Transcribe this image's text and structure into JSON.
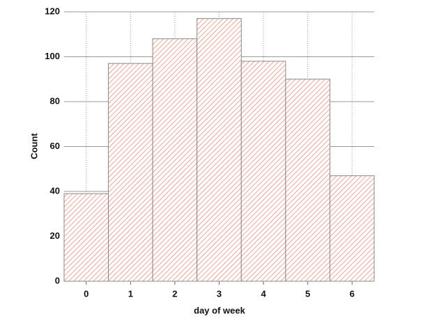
{
  "chart_data": {
    "type": "bar",
    "x_label": "day of week",
    "y_label": "Count",
    "x": [
      0,
      1,
      2,
      3,
      4,
      5,
      6
    ],
    "values": [
      39,
      97,
      108,
      117,
      98,
      90,
      47
    ],
    "color": "#e8806a",
    "edge_color": "#888888",
    "xlim": [
      -0.5,
      6.5
    ],
    "xticks": [
      0,
      1,
      2,
      3,
      4,
      5,
      6
    ],
    "ylim": [
      0,
      120
    ],
    "yticks": [
      0,
      20,
      40,
      60,
      80,
      100,
      120
    ],
    "grid": true
  }
}
